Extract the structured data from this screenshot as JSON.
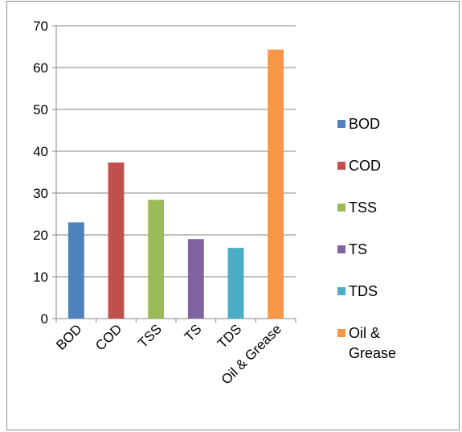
{
  "chart_data": {
    "type": "bar",
    "categories": [
      "BOD",
      "COD",
      "TSS",
      "TS",
      "TDS",
      "Oil & Grease"
    ],
    "values": [
      23,
      37.3,
      28.4,
      19,
      16.9,
      64.3
    ],
    "colors": [
      "#4f81bd",
      "#c0504d",
      "#9bbb59",
      "#8064a2",
      "#4bacc6",
      "#f79646"
    ],
    "ylim": [
      0,
      70
    ],
    "yticks": [
      0,
      10,
      20,
      30,
      40,
      50,
      60,
      70
    ],
    "grid": true,
    "legend": {
      "position": "right",
      "entries": [
        {
          "lines": [
            "BOD"
          ],
          "color": "#4f81bd"
        },
        {
          "lines": [
            "COD"
          ],
          "color": "#c0504d"
        },
        {
          "lines": [
            "TSS"
          ],
          "color": "#9bbb59"
        },
        {
          "lines": [
            "TS"
          ],
          "color": "#8064a2"
        },
        {
          "lines": [
            "TDS"
          ],
          "color": "#4bacc6"
        },
        {
          "lines": [
            "Oil &",
            "Grease"
          ],
          "color": "#f79646"
        }
      ]
    }
  }
}
